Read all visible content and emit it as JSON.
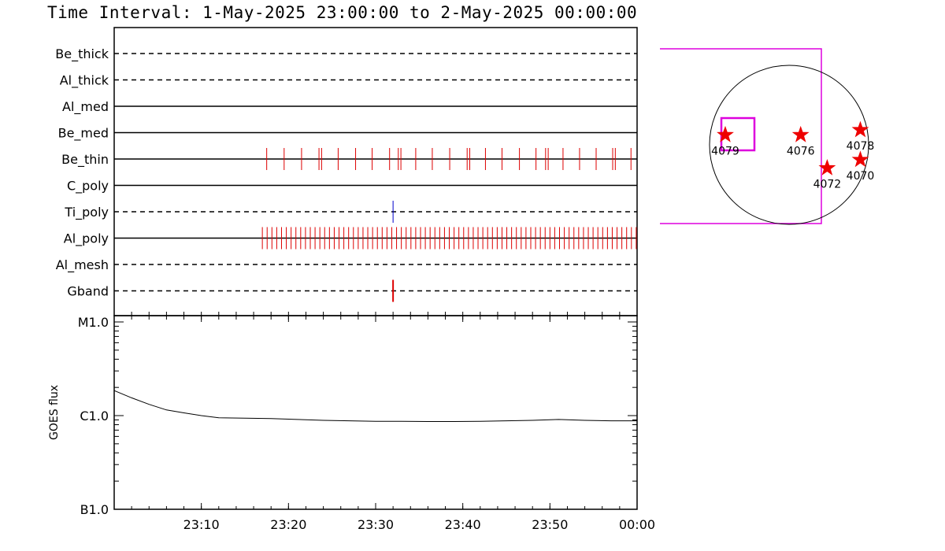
{
  "title": "Time Interval:  1-May-2025 23:00:00 to  2-May-2025 00:00:00",
  "chart_data": [
    {
      "type": "event-timeline",
      "time_range_min": [
        0,
        60
      ],
      "rows": [
        {
          "name": "Be_thick",
          "style": "dashed",
          "events": []
        },
        {
          "name": "Al_thick",
          "style": "dashed",
          "events": []
        },
        {
          "name": "Al_med",
          "style": "solid",
          "events": []
        },
        {
          "name": "Be_med",
          "style": "solid",
          "events": []
        },
        {
          "name": "Be_thin",
          "style": "solid",
          "color": "#dd0000",
          "events": [
            17.5,
            19.5,
            21.5,
            23.5,
            23.8,
            25.7,
            27.7,
            29.6,
            31.6,
            32.6,
            32.9,
            34.6,
            36.5,
            38.5,
            40.5,
            40.8,
            42.6,
            44.5,
            46.5,
            48.4,
            49.5,
            49.8,
            51.5,
            53.4,
            55.3,
            57.2,
            57.5,
            59.3
          ]
        },
        {
          "name": "C_poly",
          "style": "solid",
          "events": []
        },
        {
          "name": "Ti_poly",
          "style": "dashed",
          "color": "#0000cc",
          "events": [
            32.0
          ]
        },
        {
          "name": "Al_poly",
          "style": "solid",
          "color": "#dd0000",
          "dense_interval": [
            17.0,
            60.0
          ],
          "dense_step": 0.55
        },
        {
          "name": "Al_mesh",
          "style": "dashed",
          "events": []
        },
        {
          "name": "Gband",
          "style": "dashed",
          "color": "#dd0000",
          "events": [
            32.0
          ]
        }
      ]
    },
    {
      "type": "line",
      "ylabel": "GOES flux",
      "yscale": "log",
      "ylim": [
        1e-07,
        1e-05
      ],
      "yticks": [
        {
          "value": 1e-05,
          "label": "M1.0"
        },
        {
          "value": 1e-06,
          "label": "C1.0"
        },
        {
          "value": 1e-07,
          "label": "B1.0"
        }
      ],
      "xlim_min": [
        0,
        60
      ],
      "xticks": [
        {
          "min": 10,
          "label": "23:10"
        },
        {
          "min": 20,
          "label": "23:20"
        },
        {
          "min": 30,
          "label": "23:30"
        },
        {
          "min": 40,
          "label": "23:40"
        },
        {
          "min": 50,
          "label": "23:50"
        },
        {
          "min": 60,
          "label": "00:00"
        }
      ],
      "series": [
        {
          "x": [
            0,
            2,
            4,
            6,
            8,
            10,
            12,
            15,
            18,
            21,
            24,
            27,
            30,
            33,
            36,
            39,
            42,
            45,
            48,
            51,
            54,
            57,
            60
          ],
          "y": [
            1.85e-06,
            1.55e-06,
            1.32e-06,
            1.15e-06,
            1.07e-06,
            1e-06,
            9.5e-07,
            9.4e-07,
            9.3e-07,
            9.1e-07,
            8.9e-07,
            8.8e-07,
            8.7e-07,
            8.7e-07,
            8.65e-07,
            8.65e-07,
            8.7e-07,
            8.8e-07,
            8.9e-07,
            9.1e-07,
            8.9e-07,
            8.8e-07,
            8.8e-07
          ]
        }
      ]
    },
    {
      "type": "scatter",
      "name": "solar-disk-map",
      "disk": {
        "x": 0,
        "y": 0,
        "r": 960
      },
      "field_of_view_color": "#dd00dd",
      "regions": [
        {
          "label": "4079",
          "x": -770,
          "y": 120
        },
        {
          "label": "4076",
          "x": 140,
          "y": 120
        },
        {
          "label": "4078",
          "x": 860,
          "y": 180
        },
        {
          "label": "4072",
          "x": 460,
          "y": -280
        },
        {
          "label": "4070",
          "x": 860,
          "y": -180
        }
      ]
    }
  ]
}
